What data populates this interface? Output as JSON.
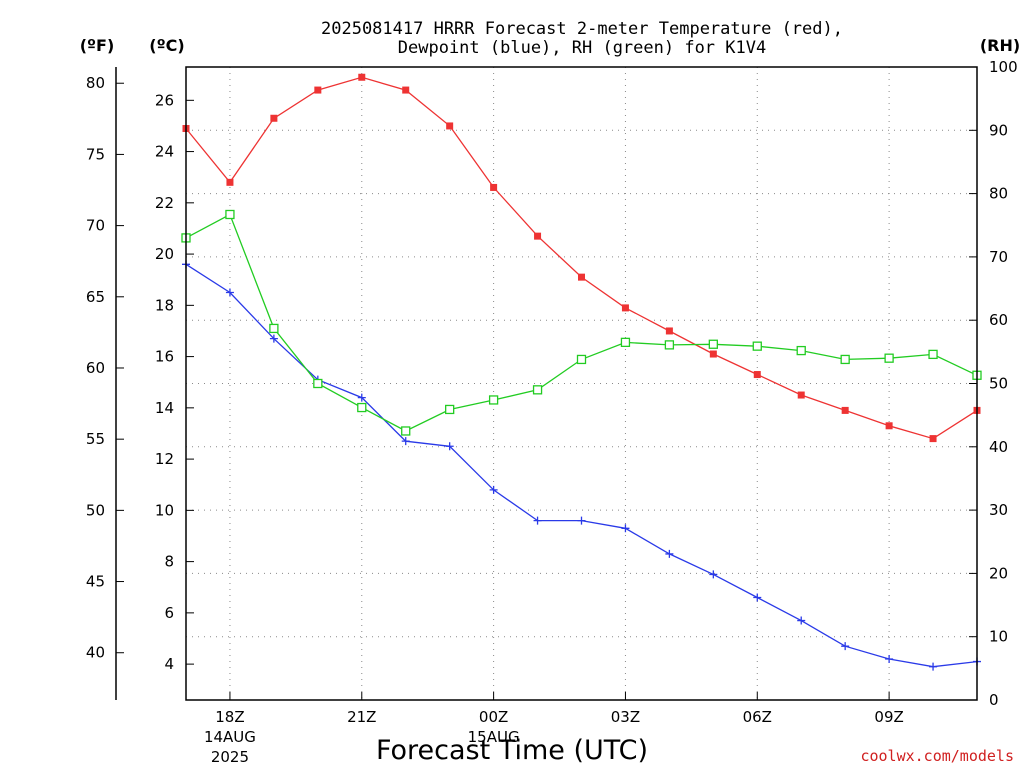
{
  "chart_data": {
    "type": "line",
    "title_lines": [
      "2025081417 HRRR Forecast 2-meter Temperature (red),",
      "Dewpoint (blue), RH (green) for K1V4"
    ],
    "xlabel": "Forecast Time (UTC)",
    "credit": "coolwx.com/models",
    "units": {
      "f": "(ºF)",
      "c": "(ºC)",
      "rh": "(RH)"
    },
    "x": [
      "17Z",
      "18Z",
      "19Z",
      "20Z",
      "21Z",
      "22Z",
      "23Z",
      "00Z",
      "01Z",
      "02Z",
      "03Z",
      "04Z",
      "05Z",
      "06Z",
      "07Z",
      "08Z",
      "09Z",
      "10Z",
      "11Z"
    ],
    "x_ticks": [
      {
        "hour": 1,
        "lines": [
          "18Z",
          "14AUG",
          "2025"
        ]
      },
      {
        "hour": 4,
        "lines": [
          "21Z"
        ]
      },
      {
        "hour": 7,
        "lines": [
          "00Z",
          "15AUG"
        ]
      },
      {
        "hour": 10,
        "lines": [
          "03Z"
        ]
      },
      {
        "hour": 13,
        "lines": [
          "06Z"
        ]
      },
      {
        "hour": 16,
        "lines": [
          "09Z"
        ]
      }
    ],
    "xlim_hours": [
      0,
      18
    ],
    "ylim_c": [
      2.6,
      27.3
    ],
    "y_ticks_c": [
      4,
      6,
      8,
      10,
      12,
      14,
      16,
      18,
      20,
      22,
      24,
      26
    ],
    "y_ticks_f": [
      40,
      45,
      50,
      55,
      60,
      65,
      70,
      75,
      80
    ],
    "ylim_rh": [
      0,
      100
    ],
    "y_ticks_rh": [
      0,
      10,
      20,
      30,
      40,
      50,
      60,
      70,
      80,
      90,
      100
    ],
    "grid": true,
    "series": [
      {
        "name": "Temperature",
        "axis": "c",
        "color": "#ee3333",
        "marker": "filled-square",
        "values": [
          24.9,
          22.8,
          25.3,
          26.4,
          26.9,
          26.4,
          25.0,
          22.6,
          20.7,
          19.1,
          17.9,
          17.0,
          16.1,
          15.3,
          14.5,
          13.9,
          13.3,
          12.8,
          13.9
        ]
      },
      {
        "name": "Dewpoint",
        "axis": "c",
        "color": "#2a3ae8",
        "marker": "plus",
        "values": [
          19.6,
          18.5,
          16.7,
          15.1,
          14.4,
          12.7,
          12.5,
          10.8,
          9.6,
          9.6,
          9.3,
          8.3,
          7.5,
          6.6,
          5.7,
          4.7,
          4.2,
          3.9,
          4.1
        ]
      },
      {
        "name": "RH",
        "axis": "rh",
        "color": "#22cc22",
        "marker": "open-square",
        "values": [
          73,
          76.7,
          58.7,
          50,
          46.2,
          42.5,
          45.9,
          47.4,
          49,
          53.8,
          56.5,
          56.1,
          56.2,
          55.9,
          55.2,
          53.8,
          54,
          54.6,
          51.3
        ]
      }
    ]
  }
}
